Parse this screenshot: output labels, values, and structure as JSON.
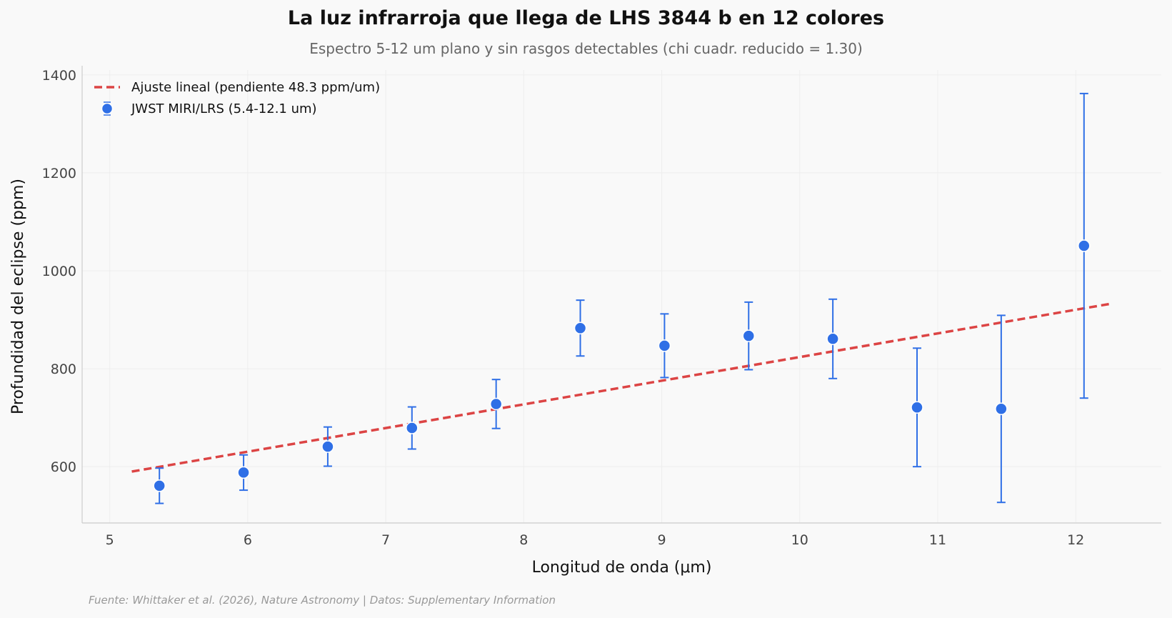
{
  "title": "La luz infrarroja que llega de LHS 3844 b en 12 colores",
  "subtitle": "Espectro 5-12 um plano y sin rasgos detectables (chi cuadr. reducido = 1.30)",
  "source": "Fuente: Whittaker et al. (2026), Nature Astronomy | Datos: Supplementary Information",
  "colors": {
    "points": "#2f6fe6",
    "fit": "#dc4444",
    "grid": "#eeeeee",
    "axis": "#cccccc"
  },
  "legend": {
    "fit_label": "Ajuste lineal (pendiente 48.3 ppm/um)",
    "points_label": "JWST MIRI/LRS (5.4-12.1 um)",
    "placement": "top-left"
  },
  "chart_data": {
    "type": "scatter",
    "xlabel": "Longitud de onda (μm)",
    "ylabel": "Profundidad del eclipse (ppm)",
    "xlim": [
      4.8,
      12.62
    ],
    "ylim": [
      485,
      1410
    ],
    "xticks": [
      5,
      6,
      7,
      8,
      9,
      10,
      11,
      12
    ],
    "yticks": [
      600,
      800,
      1000,
      1200,
      1400
    ],
    "grid": true,
    "series": [
      {
        "name": "JWST MIRI/LRS (5.4-12.1 um)",
        "type": "errorbar",
        "points": [
          {
            "x": 5.36,
            "y": 561,
            "err_low": 36,
            "err_high": 36
          },
          {
            "x": 5.97,
            "y": 588,
            "err_low": 36,
            "err_high": 36
          },
          {
            "x": 6.58,
            "y": 641,
            "err_low": 40,
            "err_high": 40
          },
          {
            "x": 7.19,
            "y": 679,
            "err_low": 43,
            "err_high": 43
          },
          {
            "x": 7.8,
            "y": 728,
            "err_low": 50,
            "err_high": 50
          },
          {
            "x": 8.41,
            "y": 883,
            "err_low": 57,
            "err_high": 57
          },
          {
            "x": 9.02,
            "y": 847,
            "err_low": 65,
            "err_high": 65
          },
          {
            "x": 9.63,
            "y": 867,
            "err_low": 69,
            "err_high": 69
          },
          {
            "x": 10.24,
            "y": 861,
            "err_low": 81,
            "err_high": 81
          },
          {
            "x": 10.85,
            "y": 721,
            "err_low": 121,
            "err_high": 121
          },
          {
            "x": 11.46,
            "y": 718,
            "err_low": 191,
            "err_high": 191
          },
          {
            "x": 12.06,
            "y": 1051,
            "err_low": 311,
            "err_high": 311
          }
        ]
      },
      {
        "name": "Ajuste lineal (pendiente 48.3 ppm/um)",
        "type": "line",
        "x": [
          5.16,
          12.26
        ],
        "y": [
          590,
          933
        ]
      }
    ]
  }
}
